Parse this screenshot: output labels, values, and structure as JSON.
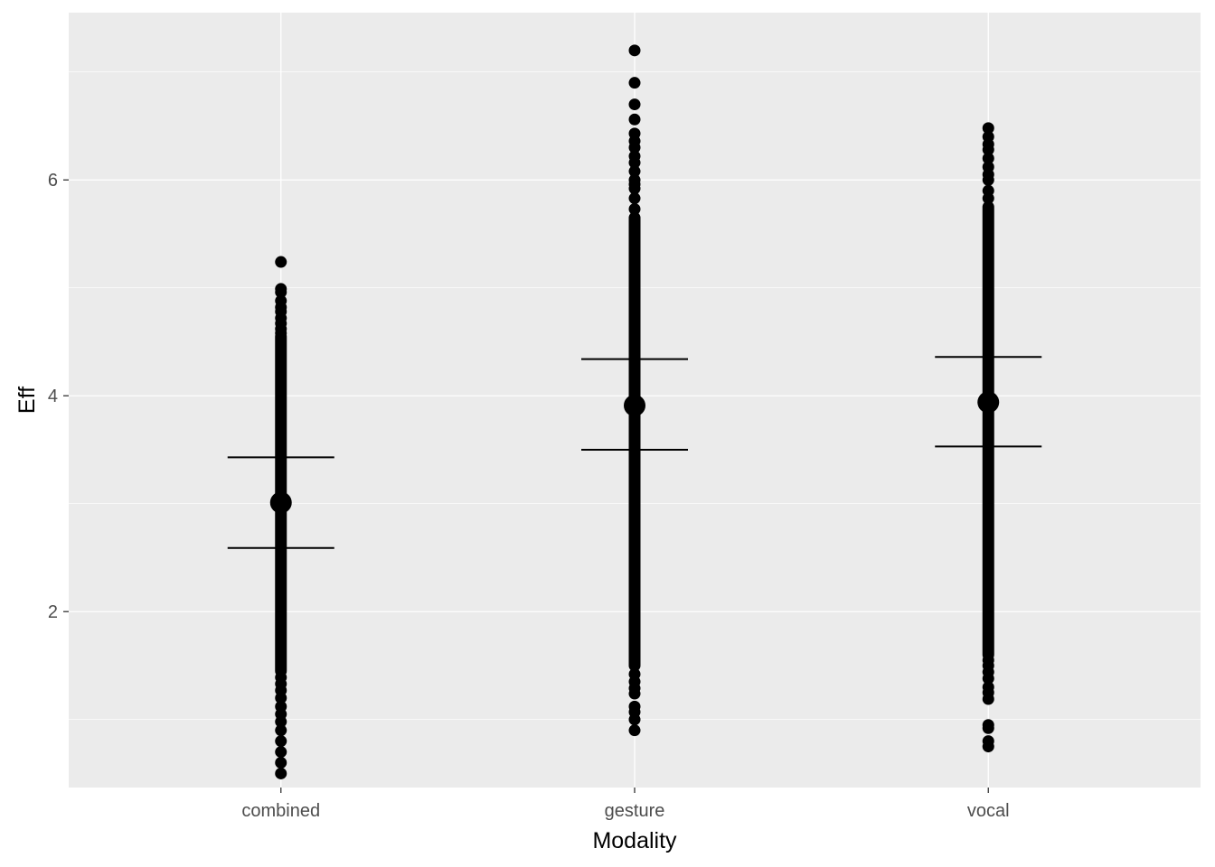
{
  "chart_data": {
    "type": "scatter",
    "title": "",
    "xlabel": "Modality",
    "ylabel": "Eff",
    "categories": [
      "combined",
      "gesture",
      "vocal"
    ],
    "y_ticks": [
      2,
      4,
      6
    ],
    "ylim": [
      0.37,
      7.55
    ],
    "grid": true,
    "colors": {
      "panel_background": "#ebebeb",
      "grid": "#ffffff",
      "points": "#000000"
    },
    "groups": [
      {
        "category": "combined",
        "min": 0.5,
        "max": 5.24,
        "mean": 3.01,
        "interval_low": 2.59,
        "interval_high": 3.43,
        "dense_range": [
          1.45,
          4.55
        ],
        "outliers": [
          0.5,
          0.6,
          0.7,
          0.8,
          0.9,
          0.98,
          1.05,
          1.12,
          1.2,
          1.27,
          1.33,
          1.39,
          4.58,
          4.62,
          4.67,
          4.72,
          4.78,
          4.82,
          4.88,
          4.96,
          4.99,
          5.24
        ]
      },
      {
        "category": "gesture",
        "min": 0.9,
        "max": 7.2,
        "mean": 3.91,
        "interval_low": 3.5,
        "interval_high": 4.34,
        "dense_range": [
          1.5,
          5.65
        ],
        "outliers": [
          0.9,
          1.0,
          1.07,
          1.12,
          1.24,
          1.29,
          1.35,
          1.42,
          5.73,
          5.83,
          5.92,
          5.96,
          6.0,
          6.08,
          6.16,
          6.22,
          6.3,
          6.36,
          6.43,
          6.56,
          6.7,
          6.9,
          7.2
        ]
      },
      {
        "category": "vocal",
        "min": 0.75,
        "max": 6.48,
        "mean": 3.94,
        "interval_low": 3.53,
        "interval_high": 4.36,
        "dense_range": [
          1.6,
          5.75
        ],
        "outliers": [
          0.75,
          0.8,
          0.92,
          0.95,
          1.19,
          1.25,
          1.3,
          1.38,
          1.44,
          1.5,
          1.55,
          5.83,
          5.9,
          6.0,
          6.05,
          6.12,
          6.2,
          6.28,
          6.33,
          6.4,
          6.48
        ]
      }
    ]
  }
}
